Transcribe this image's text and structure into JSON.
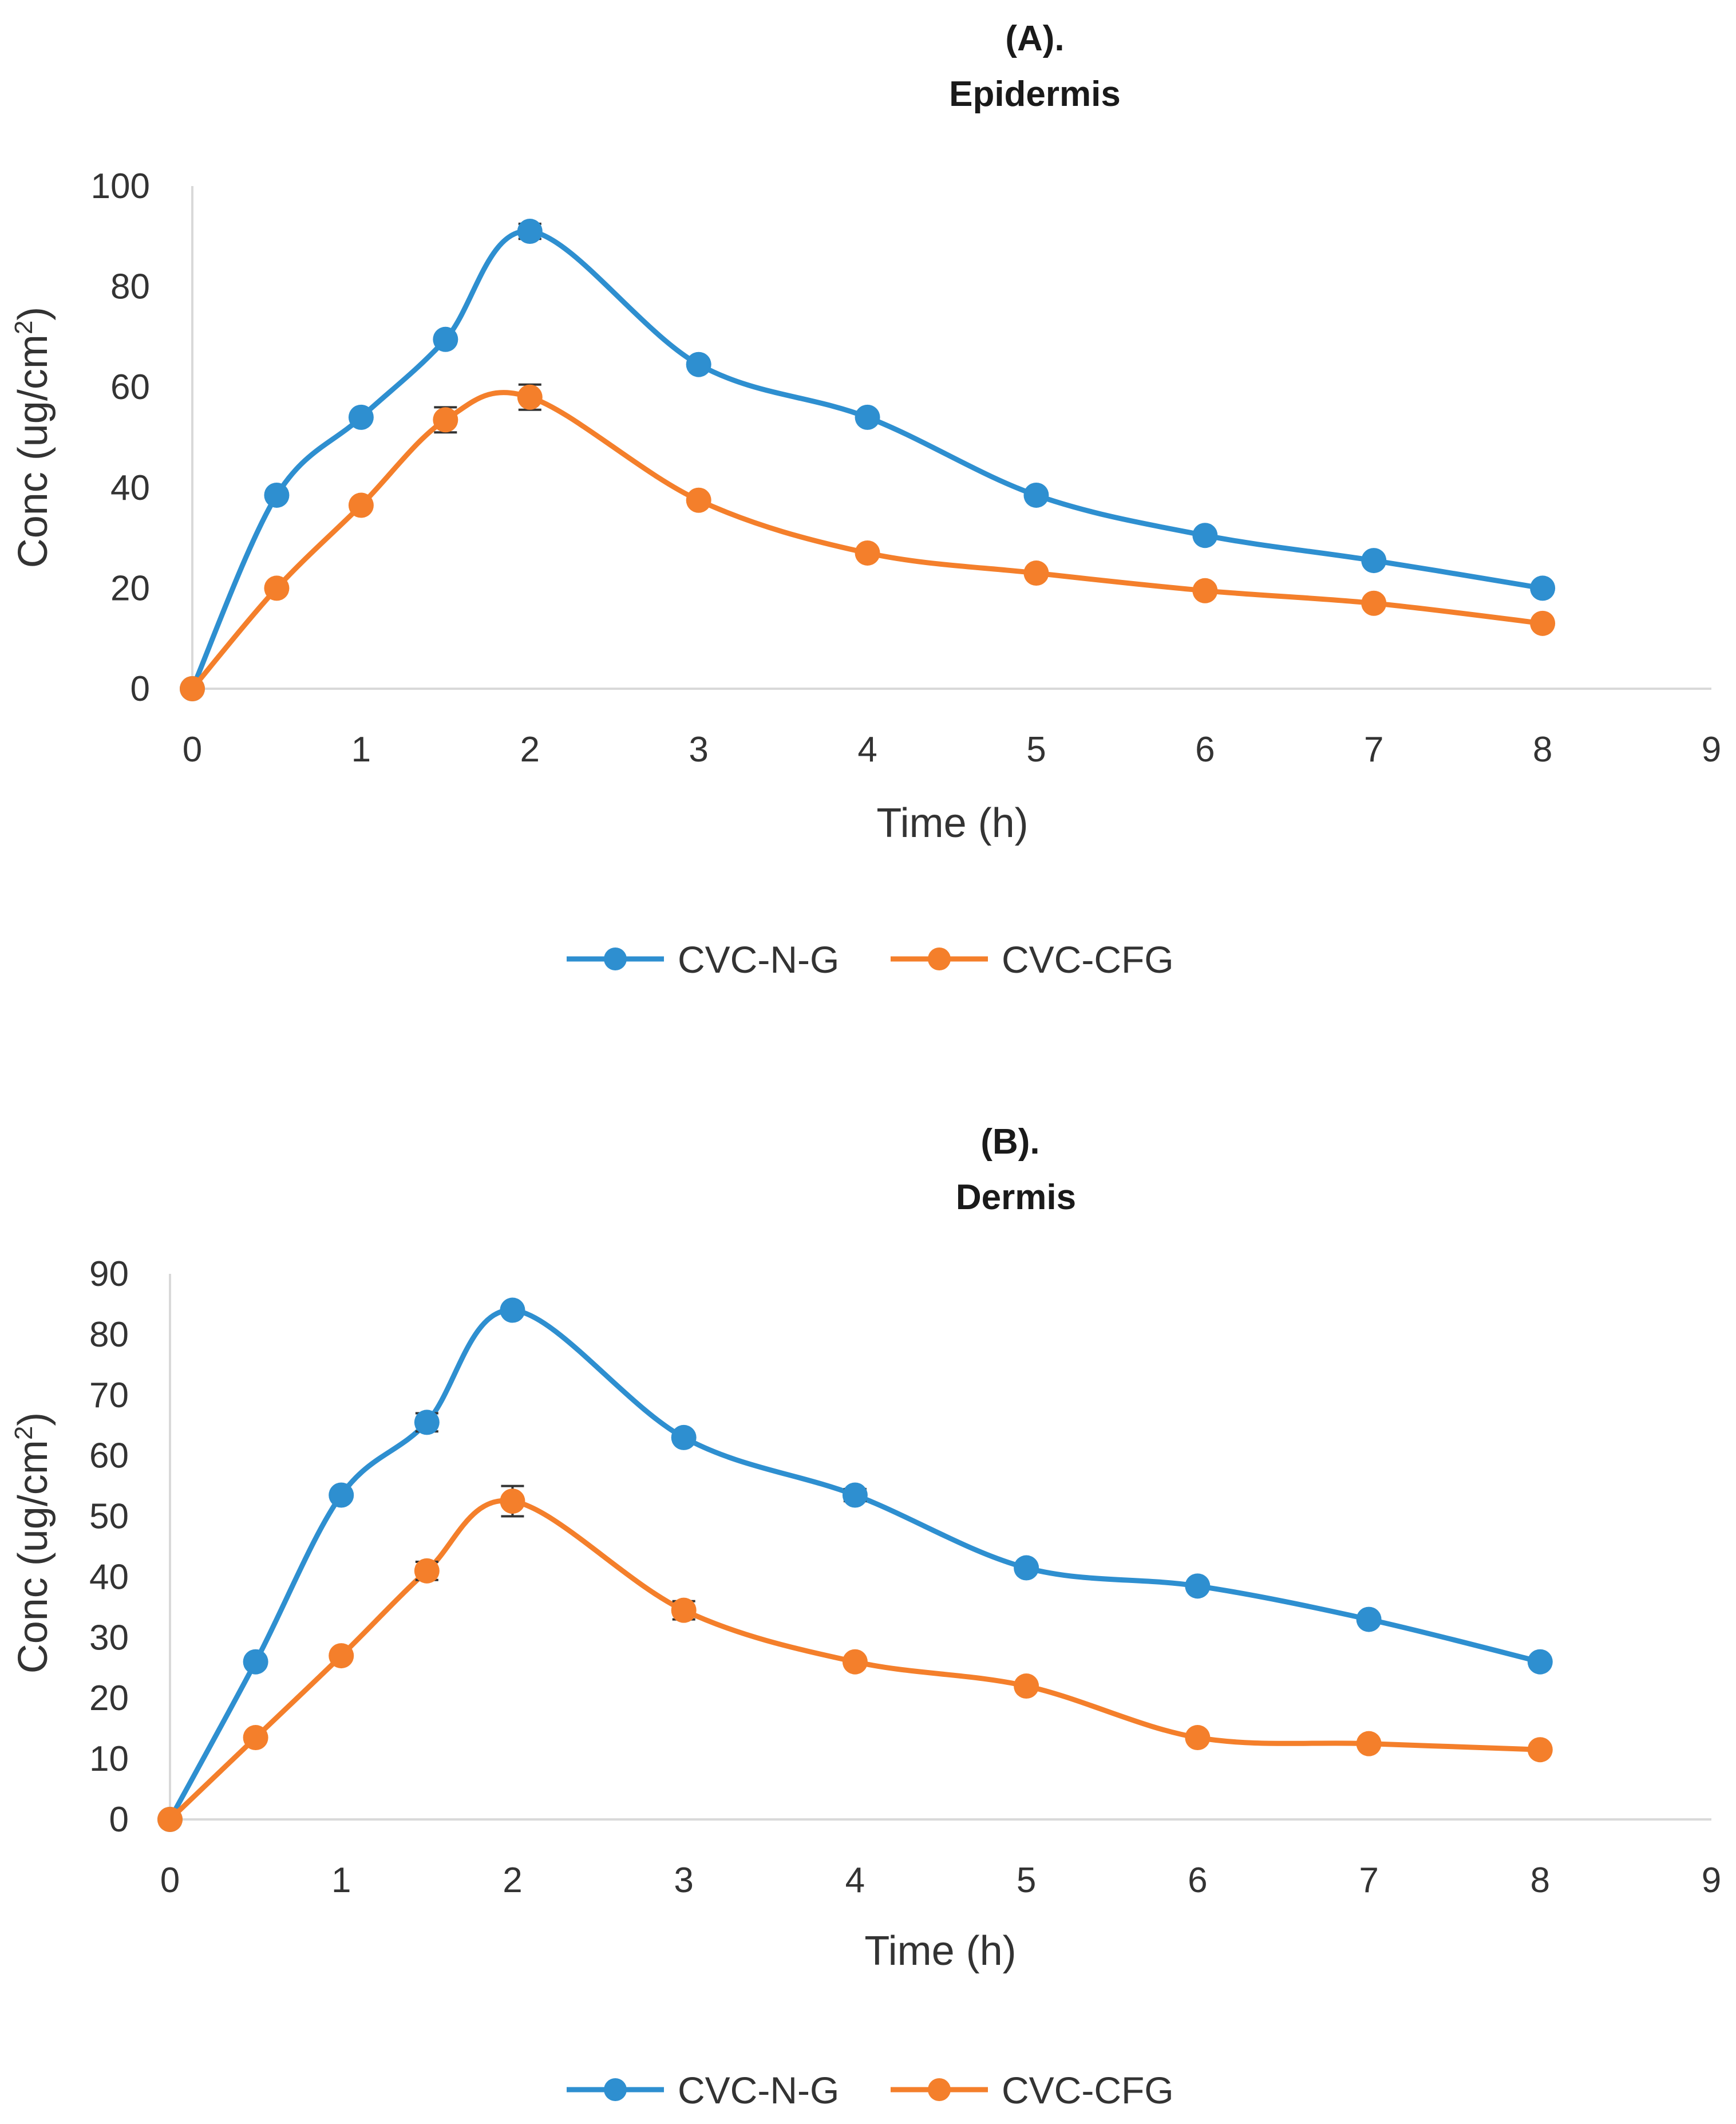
{
  "chart_data": [
    {
      "type": "line",
      "panel_label": "(A).",
      "title": "Epidermis",
      "xlabel": "Time (h)",
      "ylabel_main": "Conc (ug/cm",
      "ylabel_sup": "2",
      "ylabel_close": ")",
      "xlim": [
        0,
        9
      ],
      "ylim": [
        0,
        100
      ],
      "x_ticks": [
        0,
        1,
        2,
        3,
        4,
        5,
        6,
        7,
        8,
        9
      ],
      "y_ticks": [
        0,
        20,
        40,
        60,
        80,
        100
      ],
      "grid": false,
      "legend_position": "bottom",
      "series": [
        {
          "name": "CVC-N-G",
          "color": "#2E8FD0",
          "x": [
            0,
            0.5,
            1,
            1.5,
            2,
            3,
            4,
            5,
            6,
            7,
            8
          ],
          "y": [
            0,
            38.5,
            54,
            69.5,
            91,
            64.5,
            54,
            38.5,
            30.5,
            25.5,
            20
          ],
          "err": [
            0,
            0,
            0,
            0,
            1.5,
            0,
            0,
            0,
            0,
            0,
            0
          ]
        },
        {
          "name": "CVC-CFG",
          "color": "#F47F2B",
          "x": [
            0,
            0.5,
            1,
            1.5,
            2,
            3,
            4,
            5,
            6,
            7,
            8
          ],
          "y": [
            0,
            20,
            36.5,
            53.5,
            58,
            37.5,
            27,
            23,
            19.5,
            17,
            13
          ],
          "err": [
            0,
            0,
            0,
            2.5,
            2.5,
            0,
            0,
            0,
            0,
            0,
            0
          ]
        }
      ]
    },
    {
      "type": "line",
      "panel_label": "(B).",
      "title": "Dermis",
      "xlabel": "Time (h)",
      "ylabel_main": "Conc (ug/cm",
      "ylabel_sup": "2",
      "ylabel_close": ")",
      "xlim": [
        0,
        9
      ],
      "ylim": [
        0,
        90
      ],
      "x_ticks": [
        0,
        1,
        2,
        3,
        4,
        5,
        6,
        7,
        8,
        9
      ],
      "y_ticks": [
        0,
        10,
        20,
        30,
        40,
        50,
        60,
        70,
        80,
        90
      ],
      "grid": false,
      "legend_position": "bottom",
      "series": [
        {
          "name": "CVC-N-G",
          "color": "#2E8FD0",
          "x": [
            0,
            0.5,
            1,
            1.5,
            2,
            3,
            4,
            5,
            6,
            7,
            8
          ],
          "y": [
            0,
            26,
            53.5,
            65.5,
            84,
            63,
            53.5,
            41.5,
            38.5,
            33,
            26
          ],
          "err": [
            0,
            0,
            0,
            1.5,
            0,
            0,
            1,
            0,
            0,
            0,
            0
          ]
        },
        {
          "name": "CVC-CFG",
          "color": "#F47F2B",
          "x": [
            0,
            0.5,
            1,
            1.5,
            2,
            3,
            4,
            5,
            6,
            7,
            8
          ],
          "y": [
            0,
            13.5,
            27,
            41,
            52.5,
            34.5,
            26,
            22,
            13.5,
            12.5,
            11.5
          ],
          "err": [
            0,
            0,
            0,
            1.5,
            2.5,
            1.5,
            0,
            0,
            0,
            0,
            0
          ]
        }
      ]
    }
  ]
}
